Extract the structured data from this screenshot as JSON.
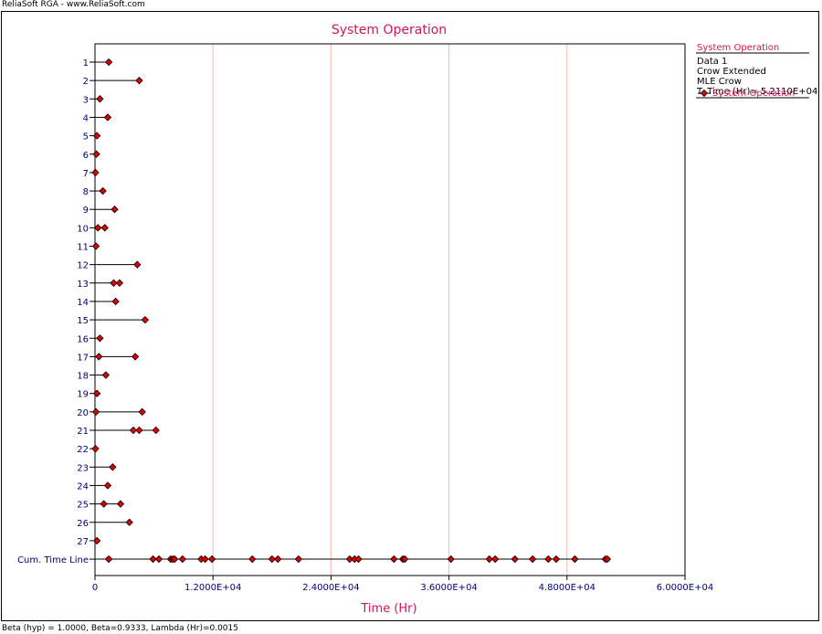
{
  "header": {
    "caption": "ReliaSoft RGA - www.ReliaSoft.com"
  },
  "footer": {
    "caption": "Beta (hyp) = 1.0000, Beta=0.9333, Lambda (Hr)=0.0015"
  },
  "colors": {
    "marker": "#e00000",
    "title": "#d4145a",
    "axis_label": "#000080",
    "grid": "#f4b6b6"
  },
  "legend": {
    "title": "System Operation",
    "lines": [
      "Data 1",
      "Crow Extended",
      "MLE Crow",
      "T. Time (Hr)= 5.2110E+04"
    ],
    "series_label": "System Operation"
  },
  "chart_data": {
    "type": "scatter",
    "title": "System Operation",
    "xlabel": "Time (Hr)",
    "ylabel": "",
    "xlim": [
      0,
      60000
    ],
    "x_ticks": [
      "0",
      "1.2000E+04",
      "2.4000E+04",
      "3.6000E+04",
      "4.8000E+04",
      "6.0000E+04"
    ],
    "x_tick_values": [
      0,
      12000,
      24000,
      36000,
      48000,
      60000
    ],
    "grid": "vertical",
    "legend_position": "top-right",
    "categories": [
      "1",
      "2",
      "3",
      "4",
      "5",
      "6",
      "7",
      "8",
      "9",
      "10",
      "11",
      "12",
      "13",
      "14",
      "15",
      "16",
      "17",
      "18",
      "19",
      "20",
      "21",
      "22",
      "23",
      "24",
      "25",
      "26",
      "27",
      "Cum. Time Line"
    ],
    "systems": [
      {
        "label": "1",
        "failures": [
          1400
        ]
      },
      {
        "label": "2",
        "failures": [
          4500
        ]
      },
      {
        "label": "3",
        "failures": [
          500
        ]
      },
      {
        "label": "4",
        "failures": [
          1300
        ]
      },
      {
        "label": "5",
        "failures": [
          200
        ]
      },
      {
        "label": "6",
        "failures": [
          150
        ]
      },
      {
        "label": "7",
        "failures": [
          50
        ]
      },
      {
        "label": "8",
        "failures": [
          800
        ]
      },
      {
        "label": "9",
        "failures": [
          2000
        ]
      },
      {
        "label": "10",
        "failures": [
          300,
          1000
        ]
      },
      {
        "label": "11",
        "failures": [
          100
        ]
      },
      {
        "label": "12",
        "failures": [
          4300
        ]
      },
      {
        "label": "13",
        "failures": [
          1900,
          2500
        ]
      },
      {
        "label": "14",
        "failures": [
          2100
        ]
      },
      {
        "label": "15",
        "failures": [
          5100
        ]
      },
      {
        "label": "16",
        "failures": [
          500
        ]
      },
      {
        "label": "17",
        "failures": [
          400,
          4100
        ]
      },
      {
        "label": "18",
        "failures": [
          1100
        ]
      },
      {
        "label": "19",
        "failures": [
          200
        ]
      },
      {
        "label": "20",
        "failures": [
          100,
          4800
        ]
      },
      {
        "label": "21",
        "failures": [
          3900,
          4500,
          6200
        ]
      },
      {
        "label": "22",
        "failures": [
          50
        ]
      },
      {
        "label": "23",
        "failures": [
          1800
        ]
      },
      {
        "label": "24",
        "failures": [
          1300
        ]
      },
      {
        "label": "25",
        "failures": [
          900,
          2600
        ]
      },
      {
        "label": "26",
        "failures": [
          3500
        ]
      },
      {
        "label": "27",
        "failures": [
          200
        ]
      }
    ],
    "cum_time_line": {
      "label": "Cum. Time Line",
      "total_time": 52110,
      "failures": [
        1400,
        5900,
        6500,
        7700,
        7900,
        8100,
        8900,
        10800,
        11200,
        11900,
        16000,
        18000,
        18600,
        20700,
        25900,
        26400,
        26800,
        30400,
        31300,
        31500,
        36200,
        40100,
        40700,
        42700,
        44500,
        46100,
        46900,
        48800,
        51900,
        52100
      ]
    }
  }
}
